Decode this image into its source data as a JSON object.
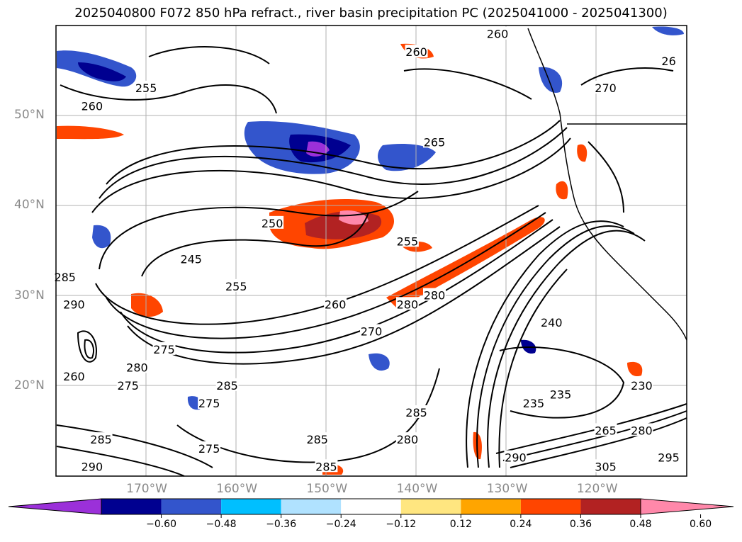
{
  "title": "2025040800 F072 850 hPa refract., river basin precipitation PC (2025041000 - 2025041300)",
  "lat_labels": [
    {
      "text": "50°N",
      "lat": 50
    },
    {
      "text": "40°N",
      "lat": 40
    },
    {
      "text": "30°N",
      "lat": 30
    },
    {
      "text": "20°N",
      "lat": 20
    }
  ],
  "lon_labels": [
    {
      "text": "170°W",
      "lon": -170
    },
    {
      "text": "160°W",
      "lon": -160
    },
    {
      "text": "150°W",
      "lon": -150
    },
    {
      "text": "140°W",
      "lon": -140
    },
    {
      "text": "130°W",
      "lon": -130
    },
    {
      "text": "120°W",
      "lon": -120
    }
  ],
  "colorbar": {
    "ticks": [
      "−0.60",
      "−0.48",
      "−0.36",
      "−0.24",
      "−0.12",
      "0.12",
      "0.24",
      "0.36",
      "0.48",
      "0.60"
    ],
    "colors": [
      "#9b30d9",
      "#000090",
      "#3355cc",
      "#00bfff",
      "#b0e2ff",
      "#ffffff",
      "#ffe680",
      "#ffa500",
      "#ff4500",
      "#b22222",
      "#ff88aa"
    ]
  },
  "contour_labels": [
    {
      "text": "250",
      "lon": -156,
      "lat": 38
    },
    {
      "text": "245",
      "lon": -165,
      "lat": 34
    },
    {
      "text": "255",
      "lon": -160,
      "lat": 31
    },
    {
      "text": "260",
      "lon": -149,
      "lat": 29
    },
    {
      "text": "255",
      "lon": -141,
      "lat": 36
    },
    {
      "text": "265",
      "lon": -138,
      "lat": 47
    },
    {
      "text": "255",
      "lon": -170,
      "lat": 53
    },
    {
      "text": "260",
      "lon": -176,
      "lat": 51
    },
    {
      "text": "260",
      "lon": -140,
      "lat": 57
    },
    {
      "text": "260",
      "lon": -131,
      "lat": 59
    },
    {
      "text": "270",
      "lon": -119,
      "lat": 53
    },
    {
      "text": "26",
      "lon": -112,
      "lat": 56
    },
    {
      "text": "280",
      "lon": -138,
      "lat": 30
    },
    {
      "text": "280",
      "lon": -141,
      "lat": 29
    },
    {
      "text": "270",
      "lon": -145,
      "lat": 26
    },
    {
      "text": "240",
      "lon": -125,
      "lat": 27
    },
    {
      "text": "275",
      "lon": -168,
      "lat": 24
    },
    {
      "text": "280",
      "lon": -171,
      "lat": 22
    },
    {
      "text": "260",
      "lon": -178,
      "lat": 21
    },
    {
      "text": "275",
      "lon": -172,
      "lat": 20
    },
    {
      "text": "285",
      "lon": -161,
      "lat": 20
    },
    {
      "text": "275",
      "lon": -163,
      "lat": 18
    },
    {
      "text": "285",
      "lon": -140,
      "lat": 17
    },
    {
      "text": "285",
      "lon": -175,
      "lat": 14
    },
    {
      "text": "285",
      "lon": -151,
      "lat": 14
    },
    {
      "text": "280",
      "lon": -141,
      "lat": 14
    },
    {
      "text": "275",
      "lon": -163,
      "lat": 13
    },
    {
      "text": "290",
      "lon": -176,
      "lat": 11
    },
    {
      "text": "285",
      "lon": -150,
      "lat": 11
    },
    {
      "text": "235",
      "lon": -127,
      "lat": 18
    },
    {
      "text": "235",
      "lon": -124,
      "lat": 19
    },
    {
      "text": "230",
      "lon": -115,
      "lat": 20
    },
    {
      "text": "265",
      "lon": -119,
      "lat": 15
    },
    {
      "text": "280",
      "lon": -115,
      "lat": 15
    },
    {
      "text": "305",
      "lon": -119,
      "lat": 11
    },
    {
      "text": "295",
      "lon": -112,
      "lat": 12
    },
    {
      "text": "290",
      "lon": -129,
      "lat": 12
    },
    {
      "text": "290",
      "lon": -178,
      "lat": 29
    },
    {
      "text": "285",
      "lon": -179,
      "lat": 32
    }
  ]
}
